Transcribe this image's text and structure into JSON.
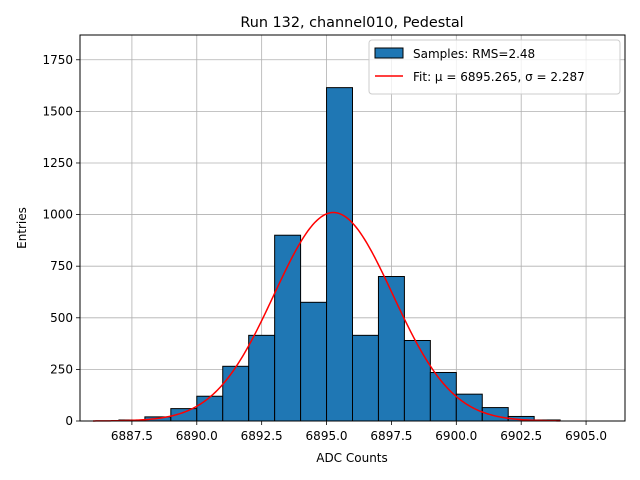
{
  "chart_data": {
    "type": "bar",
    "title": "Run 132, channel010, Pedestal",
    "xlabel": "ADC Counts",
    "ylabel": "Entries",
    "xlim": [
      6885.5,
      6906.5
    ],
    "ylim": [
      0,
      1870
    ],
    "grid": true,
    "legend_placement": "top-right",
    "x_ticks": [
      6887.5,
      6890.0,
      6892.5,
      6895.0,
      6897.5,
      6900.0,
      6902.5,
      6905.0
    ],
    "y_ticks": [
      0,
      250,
      500,
      750,
      1000,
      1250,
      1500,
      1750
    ],
    "x_tick_labels": [
      "6887.5",
      "6890.0",
      "6892.5",
      "6895.0",
      "6897.5",
      "6900.0",
      "6902.5",
      "6905.0"
    ],
    "y_tick_labels": [
      "0",
      "250",
      "500",
      "750",
      "1000",
      "1250",
      "1500",
      "1750"
    ],
    "bin_edges": [
      6886,
      6887,
      6888,
      6889,
      6890,
      6891,
      6892,
      6893,
      6894,
      6895,
      6896,
      6897,
      6898,
      6899,
      6900,
      6901,
      6902,
      6903,
      6904,
      6905,
      6906
    ],
    "bin_counts": [
      0,
      5,
      20,
      60,
      120,
      265,
      415,
      900,
      575,
      1615,
      415,
      700,
      390,
      235,
      130,
      65,
      22,
      5,
      0,
      0
    ],
    "fit": {
      "mu": 6895.265,
      "sigma": 2.287,
      "amplitude": 1010,
      "x_range": [
        6886,
        6904
      ]
    },
    "series": [
      {
        "name": "Samples: RMS=2.48",
        "kind": "histogram",
        "color": "#1f77b4"
      },
      {
        "name": "Fit: μ = 6895.265, σ = 2.287",
        "kind": "line",
        "color": "#ff0000"
      }
    ]
  }
}
